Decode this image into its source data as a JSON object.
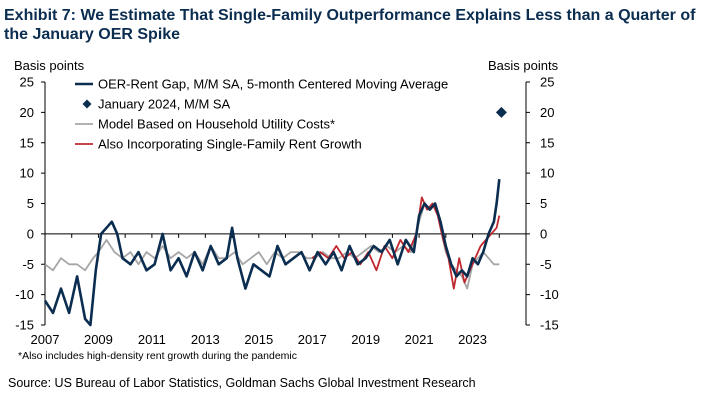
{
  "title": "Exhibit 7: We Estimate That Single-Family Outperformance Explains Less than a Quarter of the January OER Spike",
  "footnote": "*Also includes high-density rent growth during the pandemic",
  "source": "Source: US Bureau of Labor Statistics, Goldman Sachs Global Investment Research",
  "chart_data": {
    "type": "line",
    "ylabel_left": "Basis points",
    "ylabel_right": "Basis points",
    "ylim": [
      -15,
      25
    ],
    "yticks": [
      -15,
      -10,
      -5,
      0,
      5,
      10,
      15,
      20,
      25
    ],
    "xlim": [
      2007,
      2025
    ],
    "xticks": [
      2007,
      2009,
      2011,
      2013,
      2015,
      2017,
      2019,
      2021,
      2023
    ],
    "legend_position": "top-left",
    "grid": false,
    "series": [
      {
        "name": "OER-Rent Gap, M/M SA, 5-month Centered Moving Average",
        "color": "#0b2d50",
        "x": [
          2007.0,
          2007.3,
          2007.6,
          2007.9,
          2008.2,
          2008.5,
          2008.7,
          2008.9,
          2009.1,
          2009.3,
          2009.5,
          2009.7,
          2009.9,
          2010.2,
          2010.5,
          2010.8,
          2011.1,
          2011.4,
          2011.7,
          2012.0,
          2012.3,
          2012.6,
          2012.9,
          2013.2,
          2013.5,
          2013.8,
          2014.0,
          2014.2,
          2014.5,
          2014.8,
          2015.1,
          2015.4,
          2015.7,
          2016.0,
          2016.3,
          2016.6,
          2016.9,
          2017.2,
          2017.5,
          2017.8,
          2018.1,
          2018.4,
          2018.7,
          2019.0,
          2019.3,
          2019.6,
          2019.9,
          2020.2,
          2020.5,
          2020.8,
          2021.0,
          2021.2,
          2021.4,
          2021.6,
          2021.8,
          2022.0,
          2022.2,
          2022.4,
          2022.6,
          2022.8,
          2023.0,
          2023.2,
          2023.4,
          2023.6,
          2023.8,
          2023.9,
          2024.0
        ],
        "y": [
          -11,
          -13,
          -9,
          -13,
          -7,
          -14,
          -15,
          -6,
          0,
          1,
          2,
          0,
          -4,
          -5,
          -3,
          -6,
          -5,
          0,
          -6,
          -4,
          -7,
          -3,
          -6,
          -2,
          -5,
          -4,
          1,
          -4,
          -9,
          -5,
          -6,
          -7,
          -2,
          -5,
          -4,
          -3,
          -6,
          -3,
          -5,
          -3,
          -6,
          -2,
          -5,
          -4,
          -2,
          -3,
          -1,
          -5,
          -1,
          -3,
          3,
          5,
          4,
          5,
          2,
          -2,
          -5,
          -7,
          -6,
          -7,
          -4,
          -5,
          -3,
          0,
          2,
          5,
          9
        ]
      },
      {
        "name": "January 2024, M/M SA",
        "color": "#0b2d50",
        "marker": "diamond",
        "x": [
          2024.08
        ],
        "y": [
          20
        ]
      },
      {
        "name": "Model Based on Household Utility Costs*",
        "color": "#a6a6a6",
        "x": [
          2007.0,
          2007.3,
          2007.6,
          2007.9,
          2008.2,
          2008.5,
          2008.8,
          2009.0,
          2009.3,
          2009.6,
          2009.9,
          2010.2,
          2010.5,
          2010.8,
          2011.1,
          2011.4,
          2011.7,
          2012.0,
          2012.3,
          2012.6,
          2012.9,
          2013.2,
          2013.5,
          2013.8,
          2014.1,
          2014.4,
          2014.7,
          2015.0,
          2015.3,
          2015.6,
          2015.9,
          2016.2,
          2016.5,
          2016.8,
          2017.1,
          2017.4,
          2017.7,
          2018.0,
          2018.3,
          2018.6,
          2018.9,
          2019.2,
          2019.5,
          2019.8,
          2020.1,
          2020.4,
          2020.7,
          2021.0,
          2021.2,
          2021.4,
          2021.6,
          2021.8,
          2022.0,
          2022.2,
          2022.4,
          2022.6,
          2022.8,
          2023.0,
          2023.2,
          2023.4,
          2023.6,
          2023.8,
          2024.0
        ],
        "y": [
          -5,
          -6,
          -4,
          -5,
          -5,
          -6,
          -4,
          -3,
          -1,
          -3,
          -4,
          -3,
          -5,
          -3,
          -4,
          -2,
          -4,
          -3,
          -4,
          -3,
          -5,
          -2,
          -4,
          -4,
          -3,
          -5,
          -4,
          -3,
          -5,
          -3,
          -4,
          -3,
          -3,
          -4,
          -4,
          -3,
          -4,
          -4,
          -3,
          -4,
          -3,
          -2,
          -3,
          -2,
          -3,
          -2,
          -3,
          2,
          5,
          4,
          5,
          1,
          -3,
          -5,
          -6,
          -7,
          -9,
          -5,
          -4,
          -3,
          -4,
          -5,
          -5
        ]
      },
      {
        "name": "Also Incorporating Single-Family Rent Growth",
        "color": "#c0282f",
        "x": [
          2017.0,
          2017.3,
          2017.6,
          2017.9,
          2018.2,
          2018.5,
          2018.8,
          2019.1,
          2019.4,
          2019.7,
          2020.0,
          2020.3,
          2020.6,
          2020.9,
          2021.1,
          2021.3,
          2021.5,
          2021.7,
          2021.9,
          2022.1,
          2022.3,
          2022.5,
          2022.7,
          2022.9,
          2023.1,
          2023.3,
          2023.5,
          2023.7,
          2023.9,
          2024.0
        ],
        "y": [
          -4,
          -3,
          -4,
          -2,
          -4,
          -3,
          -5,
          -3,
          -6,
          -2,
          -4,
          -1,
          -3,
          0,
          6,
          4,
          5,
          3,
          -1,
          -4,
          -9,
          -4,
          -8,
          -6,
          -4,
          -2,
          -1,
          0,
          1,
          3
        ]
      }
    ]
  }
}
